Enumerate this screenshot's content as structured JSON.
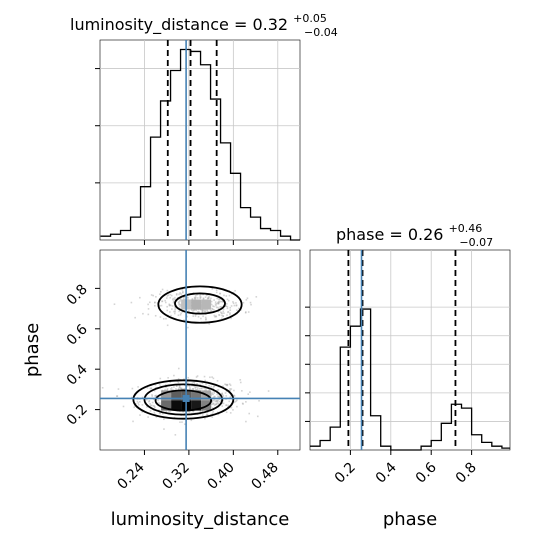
{
  "chart_data": [
    {
      "panel": "marginal",
      "type": "histogram",
      "param": "luminosity_distance",
      "title": {
        "base": "luminosity_distance = 0.32",
        "sup": "+0.05",
        "sub": "−0.04"
      },
      "xlim": [
        0.16,
        0.52
      ],
      "bins": [
        0.161,
        0.179,
        0.197,
        0.215,
        0.233,
        0.251,
        0.269,
        0.287,
        0.305,
        0.323,
        0.341,
        0.359,
        0.377,
        0.395,
        0.413,
        0.431,
        0.449,
        0.467,
        0.485,
        0.503,
        0.521
      ],
      "density": [
        0.02,
        0.03,
        0.05,
        0.12,
        0.28,
        0.54,
        0.73,
        0.89,
        1.0,
        0.99,
        0.92,
        0.74,
        0.51,
        0.35,
        0.17,
        0.12,
        0.06,
        0.05,
        0.02,
        0.0
      ],
      "quantiles": [
        0.282,
        0.323,
        0.37
      ],
      "truth": 0.315,
      "grid": true
    },
    {
      "panel": "marginal",
      "type": "histogram",
      "param": "phase",
      "title": {
        "base": "phase = 0.26",
        "sup": "+0.46",
        "sub": "−0.07"
      },
      "xlim": [
        0.0,
        0.99
      ],
      "bins": [
        0.0,
        0.05,
        0.1,
        0.15,
        0.2,
        0.25,
        0.3,
        0.35,
        0.4,
        0.45,
        0.5,
        0.55,
        0.6,
        0.65,
        0.7,
        0.75,
        0.8,
        0.85,
        0.9,
        0.95,
        1.0
      ],
      "density": [
        0.02,
        0.05,
        0.12,
        0.54,
        0.65,
        0.74,
        0.18,
        0.02,
        0.0,
        0.0,
        0.0,
        0.02,
        0.05,
        0.14,
        0.24,
        0.22,
        0.08,
        0.04,
        0.02,
        0.01
      ],
      "quantiles": [
        0.19,
        0.26,
        0.72
      ],
      "truth": 0.255,
      "grid": true
    },
    {
      "panel": "joint",
      "type": "scatter",
      "x_param": "luminosity_distance",
      "y_param": "phase",
      "xlabel": "luminosity_distance",
      "ylabel": "phase",
      "xlim": [
        0.16,
        0.52
      ],
      "ylim": [
        0.0,
        0.99
      ],
      "xticks": [
        "0.24",
        "0.32",
        "0.40",
        "0.48"
      ],
      "yticks": [
        "0.2",
        "0.4",
        "0.6",
        "0.8"
      ],
      "xtick_values": [
        0.24,
        0.32,
        0.4,
        0.48
      ],
      "ytick_values": [
        0.2,
        0.4,
        0.6,
        0.8
      ],
      "truth": {
        "x": 0.315,
        "y": 0.255
      },
      "clusters": [
        {
          "cx": 0.32,
          "cy": 0.26,
          "sx": 0.045,
          "sy": 0.045,
          "n": 700
        },
        {
          "cx": 0.335,
          "cy": 0.72,
          "sx": 0.04,
          "sy": 0.035,
          "n": 380
        }
      ],
      "density_cells": [
        {
          "x": 0.297,
          "y": 0.22,
          "level": 0.95
        },
        {
          "x": 0.315,
          "y": 0.22,
          "level": 1.0
        },
        {
          "x": 0.333,
          "y": 0.22,
          "level": 0.9
        },
        {
          "x": 0.279,
          "y": 0.22,
          "level": 0.55
        },
        {
          "x": 0.351,
          "y": 0.22,
          "level": 0.45
        },
        {
          "x": 0.297,
          "y": 0.27,
          "level": 0.6
        },
        {
          "x": 0.315,
          "y": 0.27,
          "level": 0.6
        },
        {
          "x": 0.333,
          "y": 0.27,
          "level": 0.5
        },
        {
          "x": 0.279,
          "y": 0.27,
          "level": 0.35
        },
        {
          "x": 0.351,
          "y": 0.27,
          "level": 0.3
        },
        {
          "x": 0.333,
          "y": 0.72,
          "level": 0.25
        },
        {
          "x": 0.351,
          "y": 0.72,
          "level": 0.22
        },
        {
          "x": 0.315,
          "y": 0.72,
          "level": 0.18
        }
      ],
      "contours": [
        {
          "cx": 0.31,
          "cy": 0.25,
          "rx": 0.09,
          "ry": 0.095
        },
        {
          "cx": 0.31,
          "cy": 0.25,
          "rx": 0.07,
          "ry": 0.075
        },
        {
          "cx": 0.31,
          "cy": 0.245,
          "rx": 0.05,
          "ry": 0.05
        },
        {
          "cx": 0.34,
          "cy": 0.72,
          "rx": 0.075,
          "ry": 0.09
        },
        {
          "cx": 0.34,
          "cy": 0.725,
          "rx": 0.045,
          "ry": 0.05
        }
      ]
    },
    {
      "panel": "phase-axis",
      "xlabel": "phase",
      "xticks": [
        "0.2",
        "0.4",
        "0.6",
        "0.8"
      ],
      "xtick_values": [
        0.2,
        0.4,
        0.6,
        0.8
      ]
    }
  ],
  "colors": {
    "truth": "#4682b4",
    "hist": "#000000",
    "grid": "#c8c8c8",
    "scatter": "#b0b0b0"
  }
}
